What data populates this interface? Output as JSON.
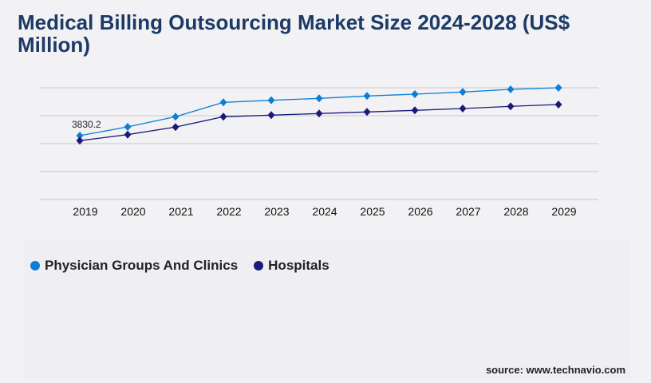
{
  "title": "Medical Billing Outsourcing Market Size 2024-2028 (US$ Million)",
  "source": "source: www.technavio.com",
  "chart_data": {
    "type": "line",
    "title": "Medical Billing Outsourcing Market Size 2024-2028 (US$ Million)",
    "categories": [
      "2019",
      "2020",
      "2021",
      "2022",
      "2023",
      "2024",
      "2025",
      "2026",
      "2027",
      "2028",
      "2029"
    ],
    "series": [
      {
        "name": "Physician Groups And Clinics",
        "color": "#0a7fd4",
        "values": [
          3830.2,
          4357,
          4965,
          5827,
          5952,
          6066,
          6210,
          6320,
          6449,
          6607,
          6703
        ]
      },
      {
        "name": "Hospitals",
        "color": "#1a1a7a",
        "values": [
          3529,
          3893,
          4343,
          4965,
          5061,
          5157,
          5252,
          5348,
          5458,
          5588,
          5698
        ]
      }
    ],
    "data_labels": [
      {
        "series": 0,
        "index": 0,
        "text": "3830.2"
      }
    ],
    "ylim": [
      0,
      6703
    ],
    "grid": true,
    "legend": "bottom-left",
    "xlabel": "",
    "ylabel": ""
  }
}
